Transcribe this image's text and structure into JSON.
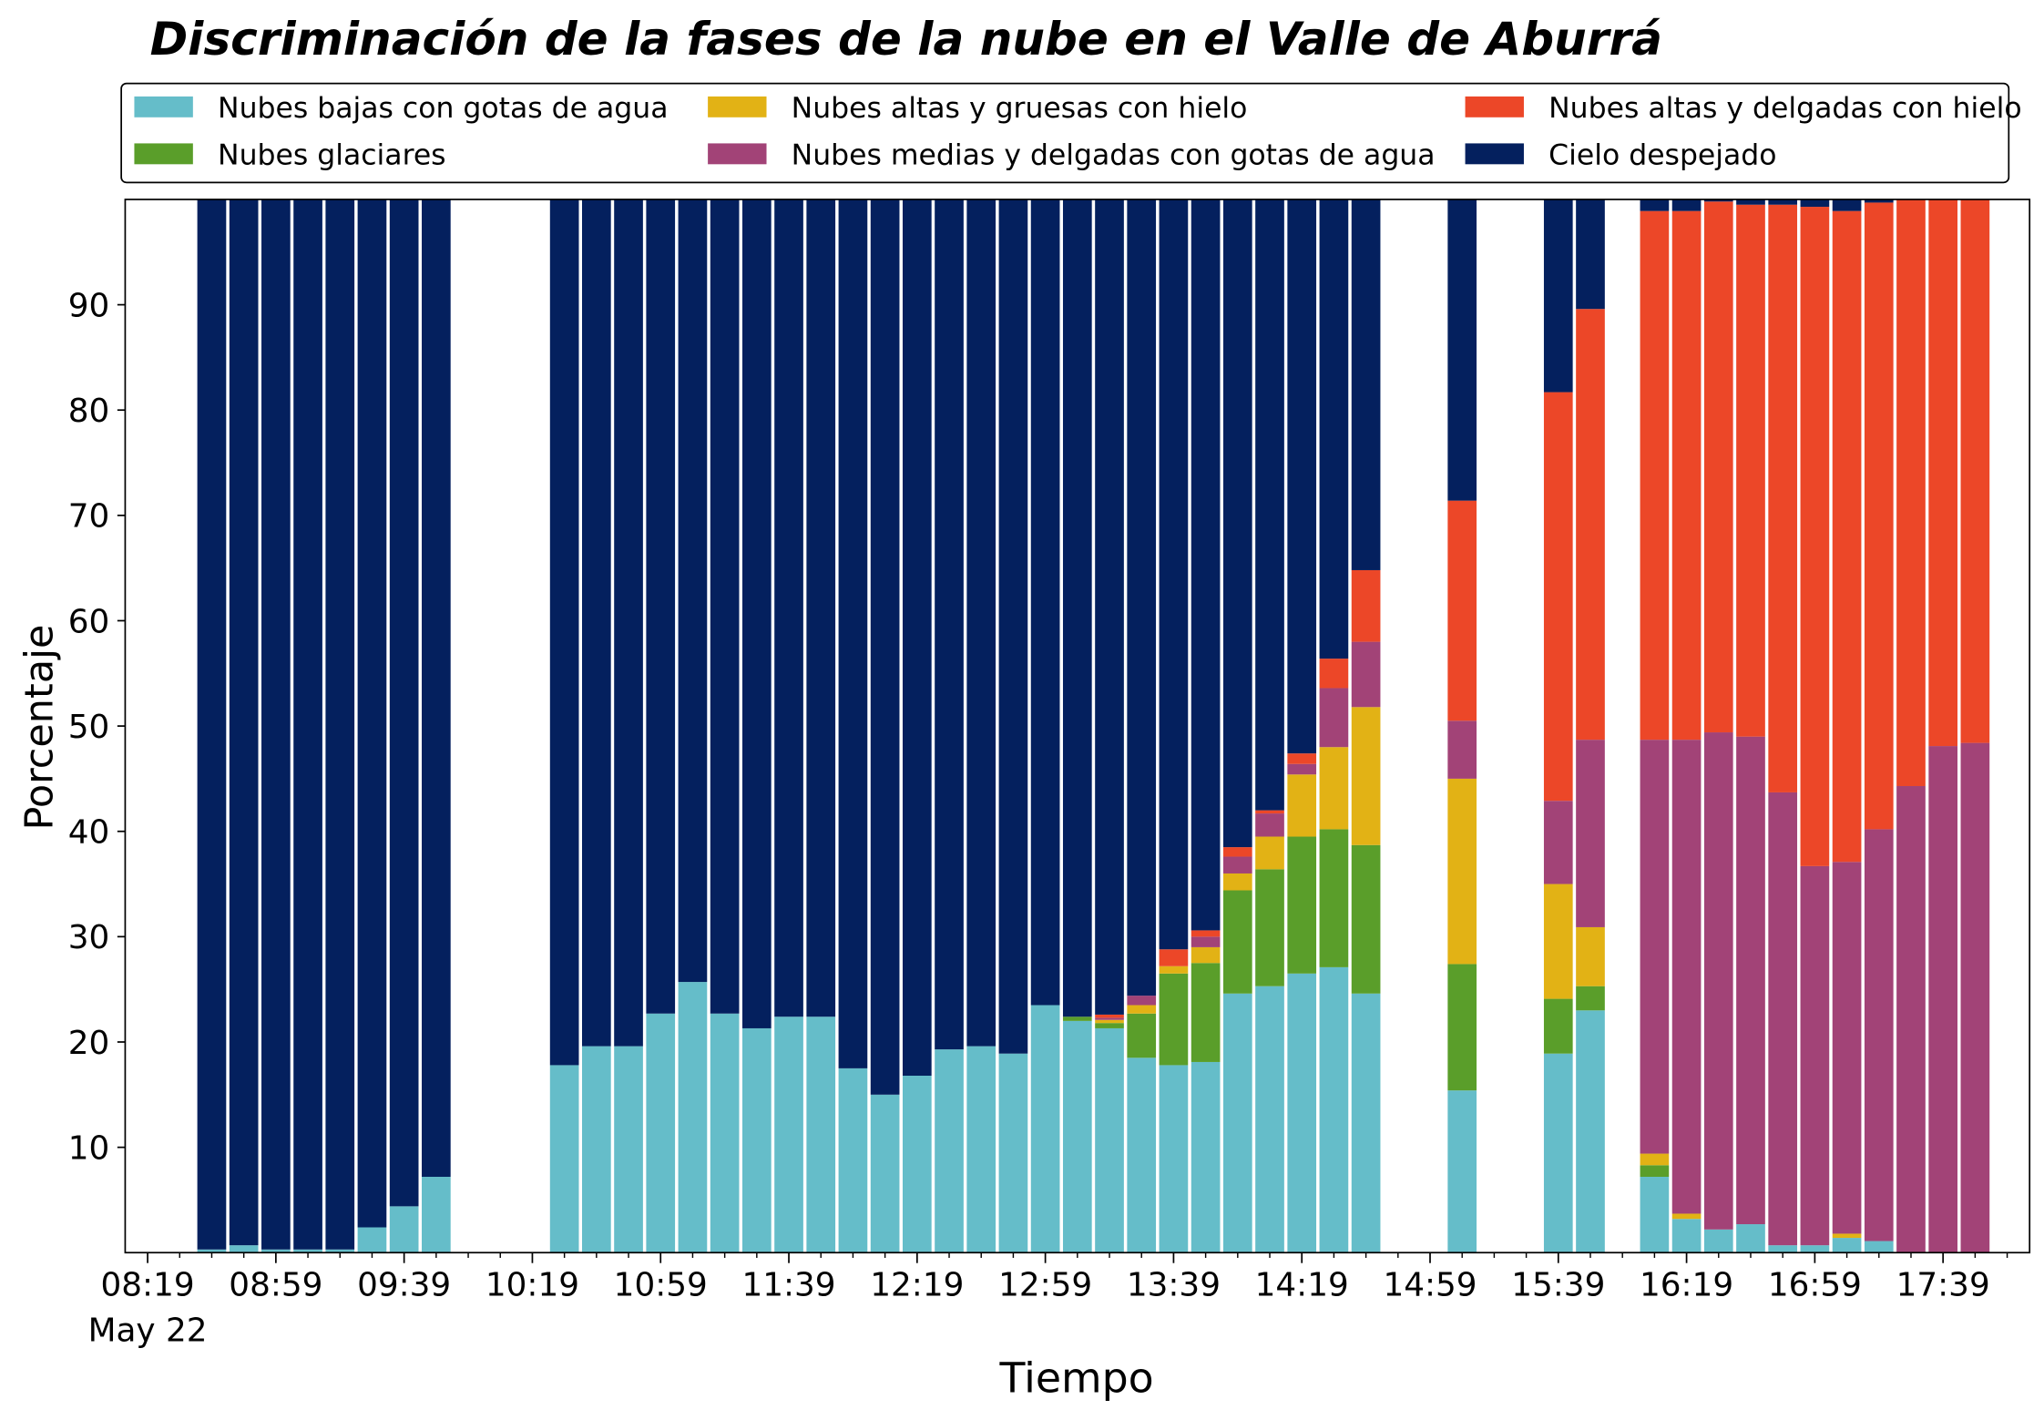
{
  "chart_data": {
    "type": "bar",
    "stacked": true,
    "title": "Discriminación de la fases de la nube en el Valle de Aburrá",
    "xlabel": "Tiempo",
    "ylabel": "Porcentaje",
    "date_label": "May 22",
    "x": [
      "08:39",
      "08:49",
      "08:59",
      "09:09",
      "09:19",
      "09:29",
      "09:39",
      "09:49",
      "10:29",
      "10:39",
      "10:49",
      "10:59",
      "11:09",
      "11:19",
      "11:29",
      "11:39",
      "11:49",
      "11:59",
      "12:09",
      "12:19",
      "12:29",
      "12:39",
      "12:49",
      "12:59",
      "13:09",
      "13:19",
      "13:29",
      "13:39",
      "13:49",
      "13:59",
      "14:09",
      "14:19",
      "14:29",
      "14:39",
      "15:09",
      "15:39",
      "15:49",
      "16:09",
      "16:19",
      "16:29",
      "16:39",
      "16:49",
      "16:59",
      "17:09",
      "17:19",
      "17:29",
      "17:39",
      "17:49"
    ],
    "xlim": [
      "08:12",
      "18:06"
    ],
    "xticks": [
      "08:19",
      "08:59",
      "09:39",
      "10:19",
      "10:59",
      "11:39",
      "12:19",
      "12:59",
      "13:39",
      "14:19",
      "14:59",
      "15:39",
      "16:19",
      "16:59",
      "17:39"
    ],
    "ylim": [
      0,
      100
    ],
    "yticks": [
      10,
      20,
      30,
      40,
      50,
      60,
      70,
      80,
      90
    ],
    "legend": "top",
    "series": [
      {
        "name": "Nubes bajas con gotas de agua",
        "color": "#65bdc9",
        "values": [
          0.3,
          0.7,
          0.3,
          0.3,
          0.3,
          2.4,
          4.4,
          7.2,
          17.8,
          19.6,
          19.6,
          22.7,
          25.7,
          22.7,
          21.3,
          22.4,
          22.4,
          17.5,
          15.0,
          16.8,
          19.3,
          19.6,
          18.9,
          23.5,
          22.0,
          21.3,
          18.5,
          17.8,
          18.1,
          24.6,
          25.3,
          26.5,
          27.1,
          24.6,
          15.4,
          18.9,
          23.0,
          7.2,
          3.2,
          2.2,
          2.7,
          0.7,
          0.7,
          1.4,
          1.1,
          0,
          0,
          0
        ]
      },
      {
        "name": "Nubes glaciares",
        "color": "#5a9e2a",
        "values": [
          0,
          0,
          0,
          0,
          0,
          0,
          0,
          0,
          0,
          0,
          0,
          0,
          0,
          0,
          0,
          0,
          0,
          0,
          0,
          0,
          0,
          0,
          0,
          0,
          0.4,
          0.5,
          4.2,
          8.7,
          9.4,
          9.8,
          11.1,
          13.0,
          13.1,
          14.1,
          12.0,
          5.2,
          2.3,
          1.1,
          0,
          0,
          0,
          0,
          0,
          0,
          0,
          0,
          0,
          0
        ]
      },
      {
        "name": "Nubes altas y gruesas con hielo",
        "color": "#e2b215",
        "values": [
          0,
          0,
          0,
          0,
          0,
          0,
          0,
          0,
          0,
          0,
          0,
          0,
          0,
          0,
          0,
          0,
          0,
          0,
          0,
          0,
          0,
          0,
          0,
          0,
          0,
          0.3,
          0.8,
          0.7,
          1.5,
          1.6,
          3.1,
          5.9,
          7.8,
          13.1,
          17.6,
          10.9,
          5.6,
          1.1,
          0.5,
          0,
          0,
          0,
          0,
          0.4,
          0,
          0,
          0,
          0
        ]
      },
      {
        "name": "Nubes medias y delgadas con gotas de agua",
        "color": "#a24377",
        "values": [
          0,
          0,
          0,
          0,
          0,
          0,
          0,
          0,
          0,
          0,
          0,
          0,
          0,
          0,
          0,
          0,
          0,
          0,
          0,
          0,
          0,
          0,
          0,
          0,
          0,
          0.2,
          0.9,
          0,
          1.0,
          1.6,
          2.2,
          1.0,
          5.6,
          6.2,
          5.5,
          7.9,
          17.8,
          39.3,
          45.0,
          47.2,
          46.3,
          43.0,
          36.0,
          35.3,
          39.1,
          44.3,
          48.1,
          48.4
        ]
      },
      {
        "name": "Nubes altas y delgadas con hielo",
        "color": "#ec4728",
        "values": [
          0,
          0,
          0,
          0,
          0,
          0,
          0,
          0,
          0,
          0,
          0,
          0,
          0,
          0,
          0,
          0,
          0,
          0,
          0,
          0,
          0,
          0,
          0,
          0,
          0,
          0.3,
          0,
          1.6,
          0.6,
          0.9,
          0.3,
          1.0,
          2.8,
          6.8,
          20.9,
          38.8,
          40.9,
          50.2,
          50.2,
          50.4,
          50.5,
          55.8,
          62.6,
          61.8,
          59.5,
          55.7,
          51.9,
          51.6
        ]
      },
      {
        "name": "Cielo despejado",
        "color": "#04205e",
        "values": [
          99.7,
          99.3,
          99.7,
          99.7,
          99.7,
          97.6,
          95.6,
          92.8,
          82.2,
          80.4,
          80.4,
          77.3,
          74.3,
          77.3,
          78.7,
          77.6,
          77.6,
          82.5,
          85.0,
          83.2,
          80.7,
          80.4,
          81.1,
          76.5,
          77.6,
          77.4,
          75.6,
          71.2,
          69.4,
          61.5,
          58.0,
          52.6,
          43.6,
          35.2,
          28.6,
          18.3,
          10.4,
          1.1,
          1.1,
          0.2,
          0.5,
          0.5,
          0.7,
          1.1,
          0.3,
          0,
          0,
          0
        ]
      }
    ]
  }
}
